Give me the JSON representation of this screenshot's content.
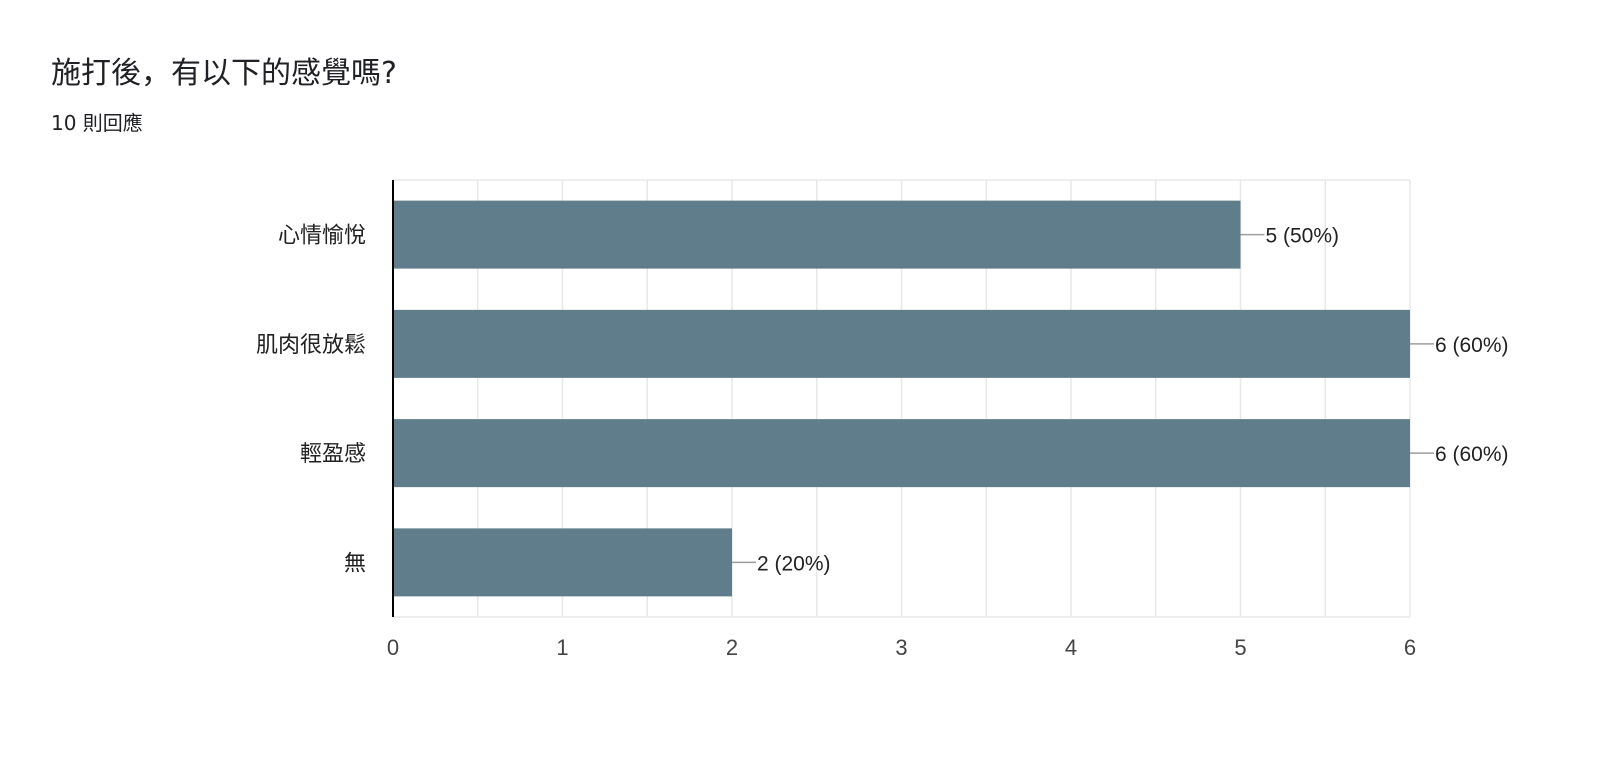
{
  "question": {
    "title": "施打後，有以下的感覺嗎?",
    "response_count": "10 則回應"
  },
  "colors": {
    "bar": "#607d8b",
    "grid": "#e8e8e8",
    "axis": "#000000",
    "label_text": "#222222",
    "tick_text": "#444444"
  },
  "chart_data": {
    "type": "bar",
    "orientation": "horizontal",
    "categories": [
      "心情愉悅",
      "肌肉很放鬆",
      "輕盈感",
      "無"
    ],
    "values": [
      5,
      6,
      6,
      2
    ],
    "data_labels": [
      "5 (50%)",
      "6 (60%)",
      "6 (60%)",
      "2 (20%)"
    ],
    "xlim": [
      0,
      6
    ],
    "x_ticks": [
      0,
      1,
      2,
      3,
      4,
      5,
      6
    ],
    "minor_grid_step": 0.5,
    "grid": true,
    "legend": "none"
  }
}
